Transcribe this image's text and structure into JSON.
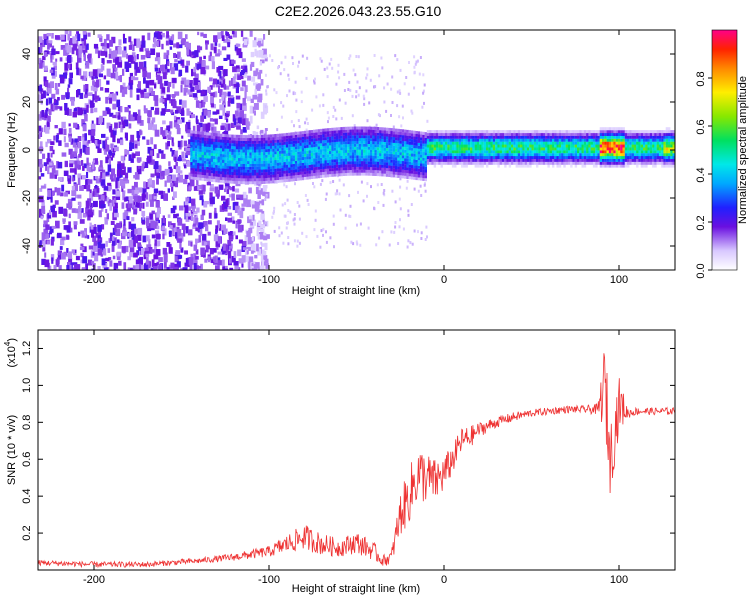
{
  "title": "C2E2.2026.043.23.55.G10",
  "chart_data": [
    {
      "type": "heatmap",
      "xlabel": "Height of straight line (km)",
      "ylabel": "Frequency (Hz)",
      "xlim": [
        -232,
        132
      ],
      "ylim": [
        -50,
        50
      ],
      "xticks": [
        -200,
        -100,
        0,
        100
      ],
      "yticks": [
        -40,
        -20,
        0,
        20,
        40
      ],
      "xtick_labels": [
        "-200",
        "-100",
        "0",
        "100"
      ],
      "ytick_labels": [
        "-40",
        "-20",
        "0",
        "20",
        "40"
      ],
      "colorbar": {
        "label": "Normalized spectral amplitude",
        "range": [
          0,
          1
        ],
        "ticks": [
          0.0,
          0.2,
          0.4,
          0.6,
          0.8
        ],
        "tick_labels": [
          "0.0",
          "0.2",
          "0.4",
          "0.6",
          "0.8"
        ]
      },
      "features": [
        {
          "x_range": [
            -232,
            -105
          ],
          "description_level": "noise",
          "amplitude": 0.2
        },
        {
          "x_range": [
            -145,
            -10
          ],
          "center_freq": 0,
          "amplitude": 0.45
        },
        {
          "x_range": [
            -10,
            132
          ],
          "center_freq": 1.5,
          "amplitude": 0.6
        },
        {
          "x_range": [
            88,
            102
          ],
          "center_freq": 1.5,
          "amplitude": 1.0
        }
      ]
    },
    {
      "type": "line",
      "xlabel": "Height of straight line (km)",
      "ylabel": "SNR (10 * v/v)",
      "exponent_label": "(x10",
      "exponent_sup": "4",
      "exponent_close": ")",
      "xlim": [
        -232,
        132
      ],
      "ylim": [
        0,
        1.3
      ],
      "xticks": [
        -200,
        -100,
        0,
        100
      ],
      "yticks": [
        0.2,
        0.4,
        0.6,
        0.8,
        1.0,
        1.2
      ],
      "xtick_labels": [
        "-200",
        "-100",
        "0",
        "100"
      ],
      "ytick_labels": [
        "0.2",
        "0.4",
        "0.6",
        "0.8",
        "1.0",
        "1.2"
      ],
      "series": [
        {
          "name": "SNR",
          "color": "#ee3333",
          "x": [
            -232,
            -200,
            -170,
            -140,
            -120,
            -100,
            -90,
            -80,
            -70,
            -60,
            -50,
            -40,
            -35,
            -30,
            -25,
            -20,
            -15,
            -10,
            -5,
            0,
            5,
            10,
            15,
            20,
            30,
            40,
            50,
            60,
            70,
            80,
            88,
            92,
            95,
            100,
            105,
            110,
            120,
            132
          ],
          "y": [
            0.04,
            0.03,
            0.03,
            0.05,
            0.07,
            0.1,
            0.14,
            0.18,
            0.14,
            0.12,
            0.15,
            0.1,
            0.05,
            0.07,
            0.3,
            0.4,
            0.52,
            0.5,
            0.48,
            0.52,
            0.6,
            0.7,
            0.72,
            0.76,
            0.8,
            0.83,
            0.85,
            0.86,
            0.87,
            0.87,
            0.87,
            1.0,
            0.6,
            0.9,
            0.85,
            0.86,
            0.86,
            0.86
          ],
          "noise": [
            0.015,
            0.015,
            0.015,
            0.015,
            0.02,
            0.03,
            0.05,
            0.07,
            0.06,
            0.05,
            0.06,
            0.05,
            0.03,
            0.04,
            0.12,
            0.15,
            0.16,
            0.14,
            0.12,
            0.1,
            0.08,
            0.07,
            0.06,
            0.04,
            0.03,
            0.025,
            0.02,
            0.02,
            0.02,
            0.02,
            0.03,
            0.25,
            0.2,
            0.15,
            0.03,
            0.02,
            0.02,
            0.02
          ]
        }
      ]
    }
  ]
}
